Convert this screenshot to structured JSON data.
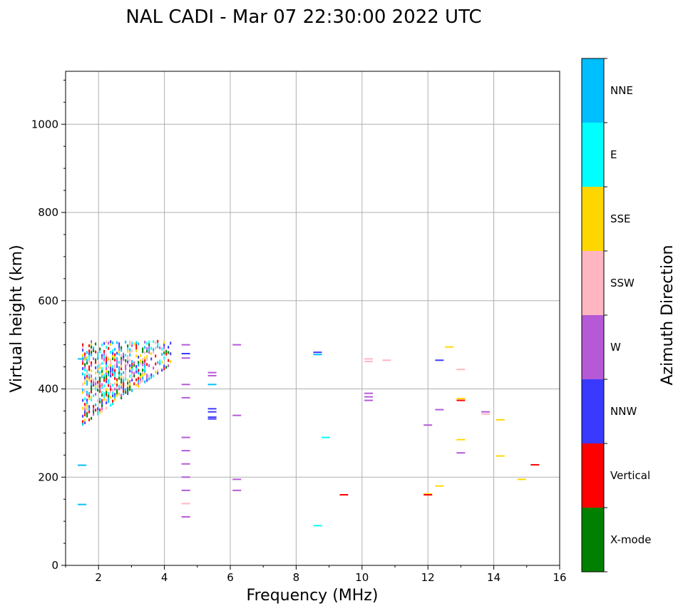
{
  "chart_data": {
    "type": "scatter",
    "title": "NAL CADI - Mar 07 22:30:00 2022 UTC",
    "xlabel": "Frequency (MHz)",
    "ylabel": "Virtual height (km)",
    "xlim": [
      1,
      16
    ],
    "ylim": [
      0,
      1120
    ],
    "xticks": [
      2,
      4,
      6,
      8,
      10,
      12,
      14,
      16
    ],
    "yticks": [
      0,
      200,
      400,
      600,
      800,
      1000
    ],
    "grid": true,
    "colorbar": {
      "label": "Azimuth Direction",
      "categories": [
        {
          "name": "X-mode",
          "color": "#008000"
        },
        {
          "name": "Vertical",
          "color": "#ff0000"
        },
        {
          "name": "NNW",
          "color": "#3a3aff"
        },
        {
          "name": "W",
          "color": "#b559d6"
        },
        {
          "name": "SSW",
          "color": "#ffb6c1"
        },
        {
          "name": "SSE",
          "color": "#ffd700"
        },
        {
          "name": "E",
          "color": "#00ffff"
        },
        {
          "name": "NNE",
          "color": "#00bfff"
        }
      ]
    },
    "points": [
      {
        "f": 1.5,
        "h": 468,
        "dir": "NNE"
      },
      {
        "f": 1.5,
        "h": 227,
        "dir": "NNE"
      },
      {
        "f": 1.5,
        "h": 138,
        "dir": "NNE"
      },
      {
        "f": 4.65,
        "h": 500,
        "dir": "W"
      },
      {
        "f": 4.65,
        "h": 480,
        "dir": "NNW"
      },
      {
        "f": 4.65,
        "h": 470,
        "dir": "W"
      },
      {
        "f": 4.65,
        "h": 410,
        "dir": "W"
      },
      {
        "f": 4.65,
        "h": 380,
        "dir": "W"
      },
      {
        "f": 4.65,
        "h": 290,
        "dir": "W"
      },
      {
        "f": 4.65,
        "h": 260,
        "dir": "W"
      },
      {
        "f": 4.65,
        "h": 230,
        "dir": "W"
      },
      {
        "f": 4.65,
        "h": 200,
        "dir": "W"
      },
      {
        "f": 4.65,
        "h": 170,
        "dir": "W"
      },
      {
        "f": 4.65,
        "h": 140,
        "dir": "SSW"
      },
      {
        "f": 4.65,
        "h": 110,
        "dir": "W"
      },
      {
        "f": 5.45,
        "h": 437,
        "dir": "W"
      },
      {
        "f": 5.45,
        "h": 430,
        "dir": "W"
      },
      {
        "f": 5.45,
        "h": 410,
        "dir": "NNE"
      },
      {
        "f": 5.45,
        "h": 355,
        "dir": "NNW"
      },
      {
        "f": 5.45,
        "h": 348,
        "dir": "NNW"
      },
      {
        "f": 5.45,
        "h": 336,
        "dir": "NNW"
      },
      {
        "f": 5.45,
        "h": 332,
        "dir": "NNW"
      },
      {
        "f": 6.2,
        "h": 500,
        "dir": "W"
      },
      {
        "f": 6.2,
        "h": 340,
        "dir": "W"
      },
      {
        "f": 6.2,
        "h": 195,
        "dir": "W"
      },
      {
        "f": 6.2,
        "h": 170,
        "dir": "W"
      },
      {
        "f": 8.65,
        "h": 483,
        "dir": "NNW"
      },
      {
        "f": 8.65,
        "h": 478,
        "dir": "NNE"
      },
      {
        "f": 8.65,
        "h": 90,
        "dir": "E"
      },
      {
        "f": 8.9,
        "h": 290,
        "dir": "E"
      },
      {
        "f": 9.45,
        "h": 160,
        "dir": "Vertical"
      },
      {
        "f": 10.2,
        "h": 468,
        "dir": "SSW"
      },
      {
        "f": 10.2,
        "h": 462,
        "dir": "SSW"
      },
      {
        "f": 10.2,
        "h": 390,
        "dir": "W"
      },
      {
        "f": 10.2,
        "h": 382,
        "dir": "W"
      },
      {
        "f": 10.2,
        "h": 374,
        "dir": "W"
      },
      {
        "f": 10.75,
        "h": 465,
        "dir": "SSW"
      },
      {
        "f": 12.0,
        "h": 318,
        "dir": "W"
      },
      {
        "f": 12.0,
        "h": 162,
        "dir": "SSE"
      },
      {
        "f": 12.0,
        "h": 160,
        "dir": "Vertical"
      },
      {
        "f": 12.35,
        "h": 465,
        "dir": "NNW"
      },
      {
        "f": 12.35,
        "h": 353,
        "dir": "W"
      },
      {
        "f": 12.35,
        "h": 180,
        "dir": "SSE"
      },
      {
        "f": 12.65,
        "h": 495,
        "dir": "SSE"
      },
      {
        "f": 13.0,
        "h": 444,
        "dir": "SSW"
      },
      {
        "f": 13.0,
        "h": 378,
        "dir": "SSE"
      },
      {
        "f": 13.0,
        "h": 374,
        "dir": "Vertical"
      },
      {
        "f": 13.0,
        "h": 285,
        "dir": "SSE"
      },
      {
        "f": 13.0,
        "h": 255,
        "dir": "W"
      },
      {
        "f": 13.75,
        "h": 348,
        "dir": "W"
      },
      {
        "f": 13.75,
        "h": 343,
        "dir": "SSW"
      },
      {
        "f": 14.2,
        "h": 330,
        "dir": "SSE"
      },
      {
        "f": 14.2,
        "h": 248,
        "dir": "SSE"
      },
      {
        "f": 14.85,
        "h": 195,
        "dir": "SSE"
      },
      {
        "f": 15.25,
        "h": 228,
        "dir": "Vertical"
      }
    ],
    "cluster": {
      "f_range": [
        1.5,
        4.2
      ],
      "h_range": [
        320,
        508
      ],
      "note": "dense multi-direction echo trace between 1.5 and 4.2 MHz",
      "dirs": [
        "X-mode",
        "Vertical",
        "NNW",
        "W",
        "SSW",
        "SSE",
        "E",
        "NNE"
      ]
    }
  }
}
